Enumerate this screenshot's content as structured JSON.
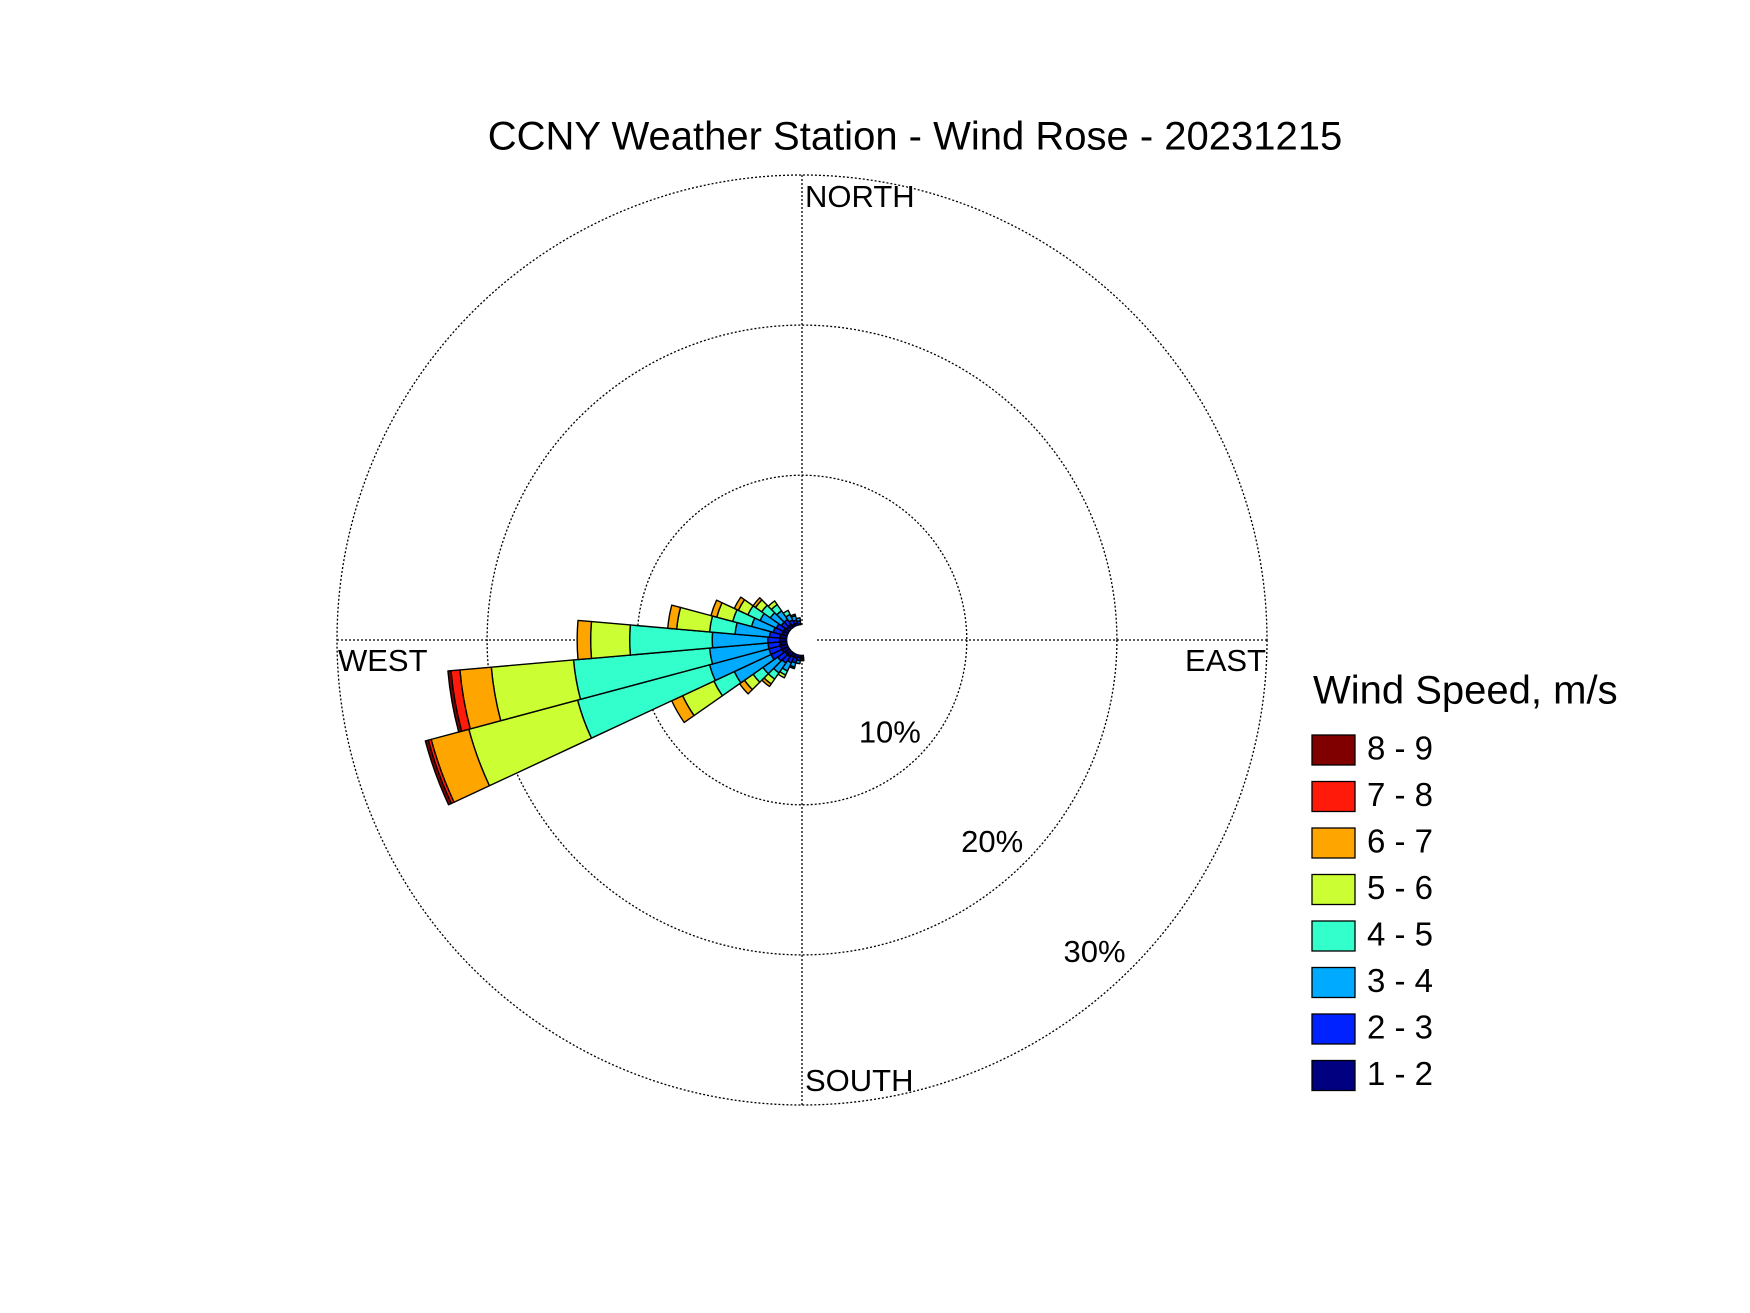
{
  "chart_data": {
    "type": "windrose",
    "title": "CCNY Weather Station - Wind Rose - 20231215",
    "compass": {
      "north": "NORTH",
      "east": "EAST",
      "south": "SOUTH",
      "west": "WEST"
    },
    "legend_title": "Wind Speed, m/s",
    "directions": [
      180,
      190,
      200,
      210,
      220,
      230,
      240,
      250,
      260,
      270,
      280,
      290,
      300,
      310,
      320,
      330,
      340,
      350
    ],
    "rlim": [
      0,
      30
    ],
    "rticks": [
      {
        "value": 10,
        "label": "10%"
      },
      {
        "value": 20,
        "label": "20%"
      },
      {
        "value": 30,
        "label": "30%"
      }
    ],
    "grid": true,
    "series": [
      {
        "name": "8 - 9",
        "color": "#800000",
        "values": [
          0,
          0,
          0,
          0,
          0,
          0,
          0,
          0.2,
          0.2,
          0,
          0,
          0,
          0,
          0,
          0,
          0,
          0,
          0
        ]
      },
      {
        "name": "7 - 8",
        "color": "#ff1a0a",
        "values": [
          0,
          0,
          0,
          0,
          0,
          0,
          0,
          0.2,
          0.6,
          0,
          0,
          0,
          0,
          0,
          0,
          0,
          0,
          0
        ]
      },
      {
        "name": "6 - 7",
        "color": "#ffa500",
        "values": [
          0,
          0,
          0,
          0,
          0.2,
          0.4,
          0.8,
          2.6,
          2.1,
          0.9,
          0.6,
          0.4,
          0.3,
          0.2,
          0,
          0,
          0,
          0
        ]
      },
      {
        "name": "5 - 6",
        "color": "#ccff33",
        "values": [
          0,
          0,
          0,
          0.2,
          0.4,
          0.7,
          2.3,
          7.5,
          5.5,
          2.6,
          2.2,
          1.1,
          0.7,
          0.5,
          0.3,
          0,
          0,
          0
        ]
      },
      {
        "name": "4 - 5",
        "color": "#33ffcc",
        "values": [
          0,
          0,
          0.1,
          0.3,
          0.5,
          0.8,
          1.5,
          9.1,
          9.1,
          5.5,
          1.7,
          1.3,
          0.9,
          0.7,
          0.5,
          0.3,
          0.1,
          0
        ]
      },
      {
        "name": "3 - 4",
        "color": "#00aaff",
        "values": [
          0.1,
          0.2,
          0.3,
          0.6,
          0.8,
          1.2,
          2.7,
          4.1,
          3.9,
          3.7,
          2.3,
          1.5,
          1.2,
          0.9,
          0.7,
          0.4,
          0.3,
          0.2
        ]
      },
      {
        "name": "2 - 3",
        "color": "#0022ff",
        "values": [
          0.1,
          0.2,
          0.3,
          0.4,
          0.5,
          0.6,
          0.8,
          0.8,
          0.8,
          0.8,
          0.7,
          0.6,
          0.5,
          0.4,
          0.4,
          0.3,
          0.2,
          0.2
        ]
      },
      {
        "name": "1 - 2",
        "color": "#000080",
        "values": [
          0.2,
          0.2,
          0.3,
          0.3,
          0.4,
          0.4,
          0.5,
          0.5,
          0.5,
          0.5,
          0.5,
          0.4,
          0.4,
          0.3,
          0.3,
          0.2,
          0.2,
          0.1
        ]
      }
    ]
  }
}
